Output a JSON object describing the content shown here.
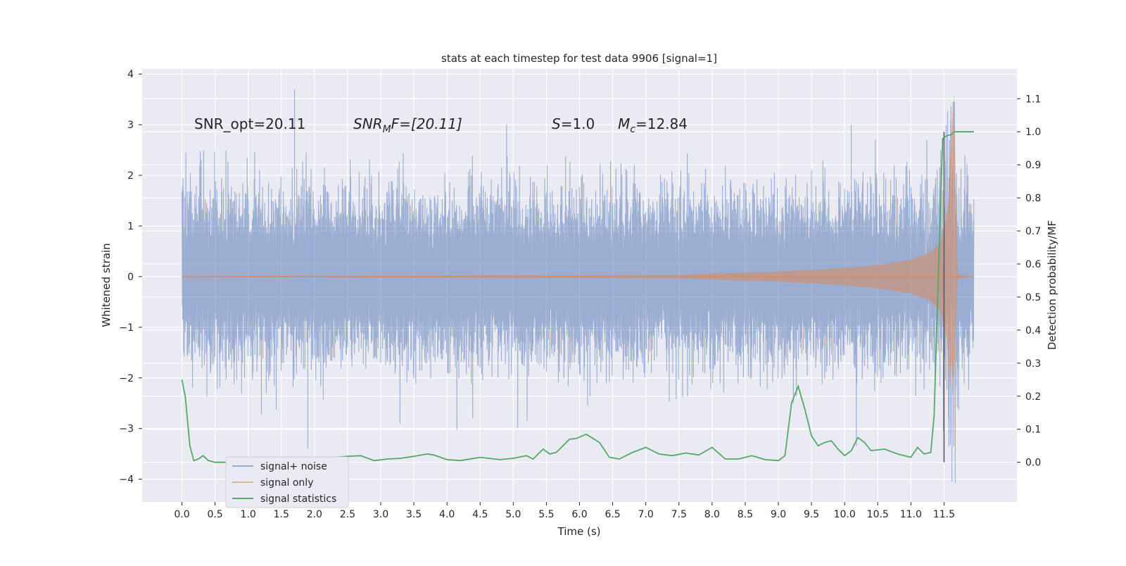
{
  "chart_data": {
    "type": "line",
    "title": "stats at each timestep for test data 9906 [signal=1]",
    "xlabel": "Time (s)",
    "ylabel": "Whitened strain",
    "y2label": "Detection probability/MF",
    "xlim": [
      -0.6,
      12.6
    ],
    "ylim": [
      -4.45,
      4.1
    ],
    "y2lim": [
      -0.12,
      1.19
    ],
    "grid": true,
    "xticks": [
      "0.0",
      "0.5",
      "1.0",
      "1.5",
      "2.0",
      "2.5",
      "3.0",
      "3.5",
      "4.0",
      "4.5",
      "5.0",
      "5.5",
      "6.0",
      "6.5",
      "7.0",
      "7.5",
      "8.0",
      "8.5",
      "9.0",
      "9.5",
      "10.0",
      "10.5",
      "11.0",
      "11.5"
    ],
    "yticks": [
      "−4",
      "−3",
      "−2",
      "−1",
      "0",
      "1",
      "2",
      "3",
      "4"
    ],
    "y2ticks": [
      "0.0",
      "0.1",
      "0.2",
      "0.3",
      "0.4",
      "0.5",
      "0.6",
      "0.7",
      "0.8",
      "0.9",
      "1.0",
      "1.1"
    ],
    "annotations": {
      "snr_opt": "SNR_opt=20.11",
      "snr_mf_base": "SNR",
      "snr_mf_sub": "M",
      "snr_mf_rest": "F=[20.11]",
      "s_symbol": "S",
      "s_value": "=1.0",
      "mc_symbol": "M",
      "mc_sub": "c",
      "mc_value": "=12.84"
    },
    "series": [
      {
        "name": "signal+ noise",
        "color": "#4c72b0",
        "description": "whitened noise, approx. |amplitude| 1.3 with peaks to 3.7",
        "envelope_peaks": [
          [
            1.7,
            3.7
          ],
          [
            1.9,
            -3.4
          ],
          [
            4.9,
            3.0
          ],
          [
            10.1,
            3.0
          ],
          [
            11.6,
            3.1
          ],
          [
            11.62,
            -4.05
          ],
          [
            11.67,
            -4.08
          ]
        ]
      },
      {
        "name": "signal only",
        "color": "#dd8452",
        "description": "chirp; envelope values [time, amplitude]",
        "envelope": [
          [
            0.0,
            0.01
          ],
          [
            7.5,
            0.03
          ],
          [
            8.0,
            0.06
          ],
          [
            9.0,
            0.1
          ],
          [
            10.0,
            0.17
          ],
          [
            10.5,
            0.23
          ],
          [
            11.0,
            0.33
          ],
          [
            11.3,
            0.48
          ],
          [
            11.45,
            0.7
          ],
          [
            11.55,
            1.3
          ],
          [
            11.6,
            2.5
          ],
          [
            11.65,
            3.7
          ],
          [
            11.7,
            0.05
          ],
          [
            11.95,
            0.0
          ]
        ]
      },
      {
        "name": "signal statistics",
        "color": "#55a868",
        "axis": "right",
        "x": [
          0.0,
          0.05,
          0.12,
          0.18,
          0.25,
          0.32,
          0.4,
          0.5,
          0.7,
          1.0,
          1.3,
          1.5,
          1.7,
          1.9,
          2.1,
          2.3,
          2.5,
          2.7,
          2.9,
          3.1,
          3.3,
          3.5,
          3.7,
          3.8,
          4.0,
          4.2,
          4.5,
          4.8,
          5.0,
          5.2,
          5.3,
          5.45,
          5.55,
          5.65,
          5.75,
          5.85,
          5.95,
          6.1,
          6.3,
          6.45,
          6.6,
          6.8,
          7.0,
          7.2,
          7.4,
          7.6,
          7.8,
          8.0,
          8.2,
          8.4,
          8.6,
          8.8,
          9.0,
          9.1,
          9.2,
          9.3,
          9.4,
          9.5,
          9.6,
          9.7,
          9.8,
          9.9,
          10.0,
          10.1,
          10.2,
          10.3,
          10.4,
          10.6,
          10.8,
          11.0,
          11.1,
          11.2,
          11.3,
          11.35,
          11.42,
          11.48,
          11.52,
          11.56,
          11.6,
          11.65,
          11.8,
          11.95
        ],
        "y": [
          0.25,
          0.2,
          0.05,
          0.005,
          0.01,
          0.02,
          0.005,
          0.0,
          0.0,
          0.0,
          0.0,
          0.002,
          0.01,
          0.005,
          0.008,
          0.015,
          0.018,
          0.02,
          0.005,
          0.01,
          0.012,
          0.018,
          0.025,
          0.022,
          0.008,
          0.005,
          0.015,
          0.008,
          0.012,
          0.02,
          0.01,
          0.04,
          0.025,
          0.03,
          0.05,
          0.07,
          0.072,
          0.085,
          0.06,
          0.015,
          0.01,
          0.03,
          0.045,
          0.025,
          0.02,
          0.028,
          0.022,
          0.045,
          0.01,
          0.01,
          0.02,
          0.008,
          0.005,
          0.02,
          0.18,
          0.23,
          0.16,
          0.08,
          0.05,
          0.06,
          0.065,
          0.04,
          0.02,
          0.035,
          0.075,
          0.06,
          0.035,
          0.04,
          0.025,
          0.015,
          0.045,
          0.025,
          0.03,
          0.14,
          0.6,
          0.98,
          0.985,
          0.99,
          0.99,
          1.0,
          1.0,
          1.0
        ]
      }
    ],
    "vertical_line": {
      "x": 11.5,
      "y2_range": [
        0.0,
        1.0
      ],
      "color": "#555555"
    }
  }
}
